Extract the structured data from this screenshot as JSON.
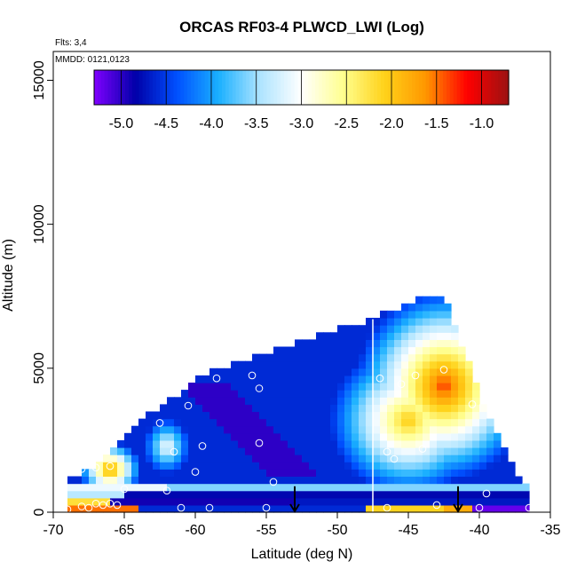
{
  "chart_data": {
    "type": "heatmap",
    "title": "ORCAS RF03-4 PLWCD_LWI (Log)",
    "annotations": [
      "Flts: 3,4",
      "MMDD: 0121,0123"
    ],
    "xlabel": "Latitude (deg N)",
    "ylabel": "Altitude (m)",
    "xlim": [
      -70,
      -35
    ],
    "ylim": [
      0,
      16000
    ],
    "xticks": [
      -70,
      -65,
      -60,
      -55,
      -50,
      -45,
      -40,
      -35
    ],
    "yticks": [
      0,
      5000,
      10000,
      15000
    ],
    "colorbar": {
      "min": -5.3,
      "max": -0.7,
      "ticks": [
        -5.0,
        -4.5,
        -4.0,
        -3.5,
        -3.0,
        -2.5,
        -2.0,
        -1.5,
        -1.0
      ],
      "tick_labels": [
        "-5.0",
        "-4.5",
        "-4.0",
        "-3.5",
        "-3.0",
        "-2.5",
        "-2.0",
        "-1.5",
        "-1.0"
      ],
      "colors": [
        "#8000ff",
        "#0000a8",
        "#0050ff",
        "#1ab0ff",
        "#aee4ff",
        "#ffffff",
        "#ffff90",
        "#ffd21a",
        "#ff9600",
        "#ff0000",
        "#9b1212"
      ]
    },
    "profile_envelope": {
      "lat": [
        -69,
        -67,
        -64,
        -59,
        -52,
        -47,
        -44,
        -42.5,
        -40,
        -37
      ],
      "alt_top": [
        1000,
        1500,
        3000,
        4800,
        5900,
        6700,
        7400,
        7500,
        4000,
        1000
      ]
    },
    "low_level_band": {
      "lat_range": [
        -69,
        -36.5
      ],
      "alt_range": [
        0,
        1000
      ]
    },
    "vertical_line_lat": -47.5,
    "sounding_markers_lat": [
      -53,
      -41.5
    ],
    "sample_points": [
      {
        "lat": -69,
        "alt": 100
      },
      {
        "lat": -68,
        "alt": 200
      },
      {
        "lat": -67.5,
        "alt": 150
      },
      {
        "lat": -67,
        "alt": 300
      },
      {
        "lat": -66.5,
        "alt": 250
      },
      {
        "lat": -66,
        "alt": 300
      },
      {
        "lat": -65.5,
        "alt": 250
      },
      {
        "lat": -68,
        "alt": 1500
      },
      {
        "lat": -67,
        "alt": 1550
      },
      {
        "lat": -66,
        "alt": 1600
      },
      {
        "lat": -65,
        "alt": 800
      },
      {
        "lat": -62.5,
        "alt": 3100
      },
      {
        "lat": -62,
        "alt": 750
      },
      {
        "lat": -61.5,
        "alt": 2100
      },
      {
        "lat": -61,
        "alt": 150
      },
      {
        "lat": -60.5,
        "alt": 3700
      },
      {
        "lat": -60,
        "alt": 1400
      },
      {
        "lat": -59.5,
        "alt": 2300
      },
      {
        "lat": -59,
        "alt": 150
      },
      {
        "lat": -58.5,
        "alt": 4650
      },
      {
        "lat": -56,
        "alt": 4750
      },
      {
        "lat": -55.5,
        "alt": 4300
      },
      {
        "lat": -55.5,
        "alt": 2400
      },
      {
        "lat": -55,
        "alt": 150
      },
      {
        "lat": -54.5,
        "alt": 1050
      },
      {
        "lat": -47,
        "alt": 4650
      },
      {
        "lat": -46.5,
        "alt": 2100
      },
      {
        "lat": -46,
        "alt": 1850
      },
      {
        "lat": -45.5,
        "alt": 4450
      },
      {
        "lat": -44.5,
        "alt": 4750
      },
      {
        "lat": -44,
        "alt": 2200
      },
      {
        "lat": -43,
        "alt": 250
      },
      {
        "lat": -42.5,
        "alt": 4950
      },
      {
        "lat": -40.5,
        "alt": 3750
      },
      {
        "lat": -40,
        "alt": 150
      },
      {
        "lat": -39.5,
        "alt": 650
      },
      {
        "lat": -36.5,
        "alt": 150
      },
      {
        "lat": -46.5,
        "alt": 150
      }
    ]
  }
}
